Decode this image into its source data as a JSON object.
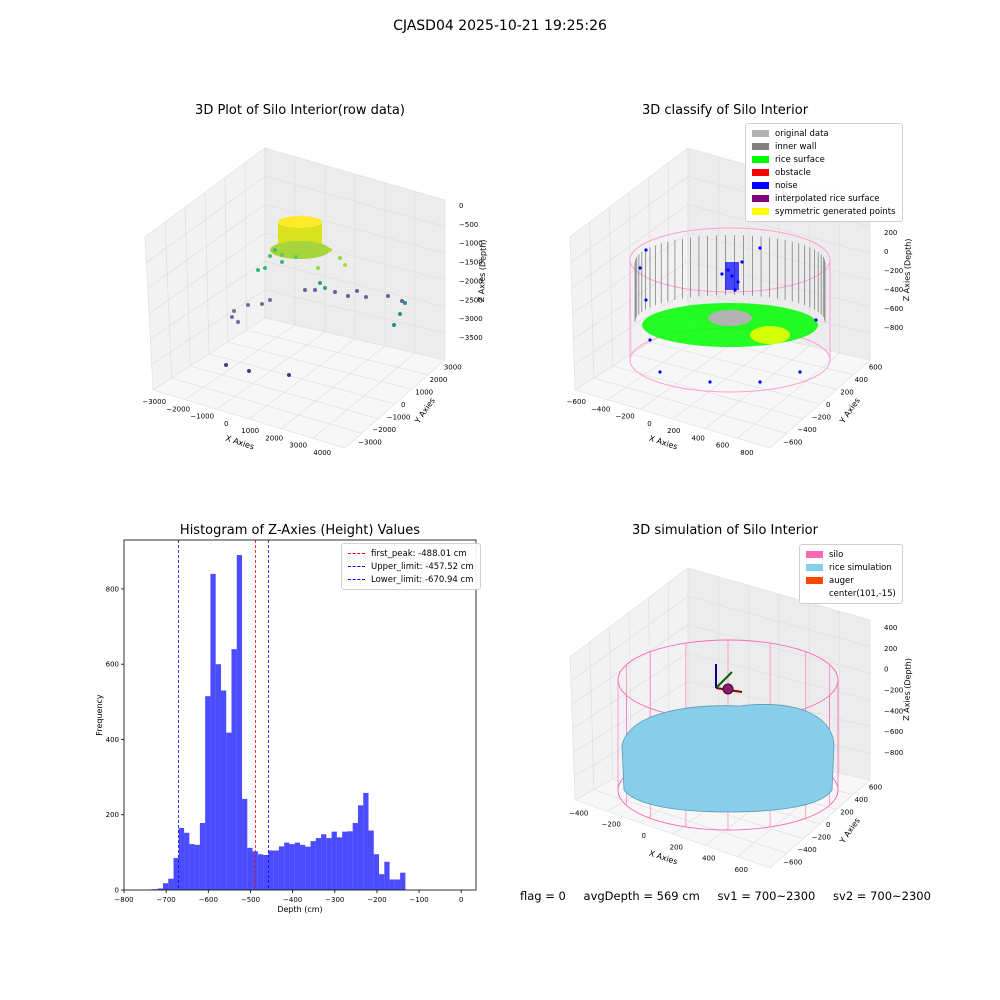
{
  "figure_title": "CJASD04 2025-10-21 19:25:26",
  "panels": {
    "raw": {
      "title": "3D Plot of Silo Interior(row data)",
      "xlabel": "X Axies",
      "ylabel": "Y Axies",
      "zlabel": "Z Axies (Depth)",
      "xticks": [
        "−3000",
        "−2000",
        "−1000",
        "0",
        "1000",
        "2000",
        "3000",
        "4000"
      ],
      "yticks": [
        "−3000",
        "−2000",
        "−1000",
        "0",
        "1000",
        "2000",
        "3000"
      ],
      "zticks": [
        "0",
        "−500",
        "−1000",
        "−1500",
        "−2000",
        "−2500",
        "−3000",
        "−3500"
      ]
    },
    "classify": {
      "title": "3D classify of Silo Interior",
      "xlabel": "X Axies",
      "ylabel": "Y Axies",
      "zlabel": "Z Axies (Depth)",
      "xticks": [
        "−600",
        "−400",
        "−200",
        "0",
        "200",
        "400",
        "600",
        "800"
      ],
      "yticks": [
        "−600",
        "−400",
        "−200",
        "0",
        "200",
        "400",
        "600"
      ],
      "zticks": [
        "400",
        "200",
        "0",
        "−200",
        "−400",
        "−600",
        "−800"
      ],
      "legend": [
        {
          "label": "original data",
          "color": "#b3b3b3"
        },
        {
          "label": "inner wall",
          "color": "#808080"
        },
        {
          "label": "rice surface",
          "color": "#00ff00"
        },
        {
          "label": "obstacle",
          "color": "#ff0000"
        },
        {
          "label": "noise",
          "color": "#0000ff"
        },
        {
          "label": "interpolated rice surface",
          "color": "#800080"
        },
        {
          "label": "symmetric generated points",
          "color": "#ffff00"
        }
      ]
    },
    "simulation": {
      "title": "3D simulation of Silo Interior",
      "xlabel": "X Axies",
      "ylabel": "Y Axies",
      "zlabel": "Z Axies (Depth)",
      "xticks": [
        "−400",
        "−200",
        "0",
        "200",
        "400",
        "600"
      ],
      "yticks": [
        "−600",
        "−400",
        "−200",
        "0",
        "200",
        "400",
        "600"
      ],
      "zticks": [
        "400",
        "200",
        "0",
        "−200",
        "−400",
        "−600",
        "−800"
      ],
      "legend": [
        {
          "label": "silo",
          "color": "#ff69b4"
        },
        {
          "label": "rice simulation",
          "color": "#87ceeb"
        },
        {
          "label": "auger",
          "color": "#ff4500"
        },
        {
          "label": "center(101,-15)",
          "color": "#ffffff"
        }
      ]
    }
  },
  "status": {
    "flag": "flag = 0",
    "avg_depth": "avgDepth = 569 cm",
    "sv1": "sv1 = 700~2300",
    "sv2": "sv2 = 700~2300"
  },
  "chart_data": {
    "type": "bar",
    "title": "Histogram of Z-Axies (Height) Values",
    "xlabel": "Depth (cm)",
    "ylabel": "Frequency",
    "xlim": [
      -800,
      35
    ],
    "ylim": [
      0,
      930
    ],
    "bin_width": 12.5,
    "bin_start": -745,
    "values": [
      1,
      2,
      4,
      18,
      30,
      85,
      165,
      152,
      122,
      120,
      178,
      515,
      840,
      600,
      530,
      418,
      640,
      890,
      242,
      112,
      103,
      95,
      93,
      105,
      105,
      116,
      126,
      122,
      126,
      120,
      115,
      130,
      138,
      148,
      138,
      155,
      140,
      155,
      156,
      178,
      225,
      258,
      158,
      95,
      42,
      75,
      28,
      28,
      46
    ],
    "color": "#0000ff",
    "xticks": [
      -800,
      -700,
      -600,
      -500,
      -400,
      -300,
      -200,
      -100,
      0
    ],
    "yticks": [
      0,
      200,
      400,
      600,
      800
    ],
    "vlines": [
      {
        "label": "first_peak: -488.01 cm",
        "x": -488.01,
        "color": "#ff0000"
      },
      {
        "label": "Upper_limit: -457.52 cm",
        "x": -457.52,
        "color": "#0000ff"
      },
      {
        "label": "Lower_limit: -670.94 cm",
        "x": -670.94,
        "color": "#0000ff"
      }
    ],
    "legend_position": "top-right"
  }
}
